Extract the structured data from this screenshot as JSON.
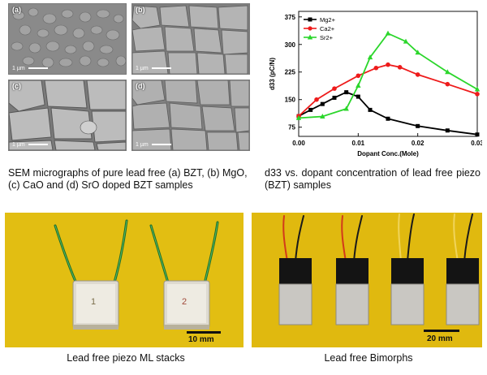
{
  "sem_panels": [
    {
      "tag": "(a)",
      "scale_label": "1 µm"
    },
    {
      "tag": "(b)",
      "scale_label": "1 µm"
    },
    {
      "tag": "(c)",
      "scale_label": "1 µm"
    },
    {
      "tag": "(d)",
      "scale_label": "1 µm"
    }
  ],
  "captions": {
    "sem": "SEM micrographs of pure lead free (a) BZT, (b) MgO, (c) CaO and (d) SrO doped BZT samples",
    "chart": "d33 vs. dopant concentration of lead free piezo (BZT) samples",
    "ml_stacks": "Lead free piezo ML stacks",
    "bimorphs": "Lead free Bimorphs"
  },
  "photo_labels": {
    "ml_scale": "10 mm",
    "ml_marks": [
      "1",
      "2"
    ],
    "bim_scale": "20 mm"
  },
  "chart_data": {
    "type": "line",
    "xlabel": "Dopant Conc.(Mole)",
    "ylabel": "d33 (pC/N)",
    "xlim": [
      0.0,
      0.03
    ],
    "ylim": [
      50,
      390
    ],
    "xticks": [
      0.0,
      0.01,
      0.02,
      0.03
    ],
    "xtick_labels": [
      "0.00",
      "0.01",
      "0.02",
      "0.03"
    ],
    "yticks": [
      75,
      150,
      225,
      300,
      375
    ],
    "legend_position": "top-left",
    "series": [
      {
        "name": "Mg2+",
        "color": "#000000",
        "marker": "square",
        "points": [
          [
            0.0,
            105
          ],
          [
            0.002,
            122
          ],
          [
            0.004,
            138
          ],
          [
            0.006,
            155
          ],
          [
            0.008,
            170
          ],
          [
            0.01,
            158
          ],
          [
            0.012,
            122
          ],
          [
            0.015,
            98
          ],
          [
            0.02,
            78
          ],
          [
            0.025,
            66
          ],
          [
            0.03,
            55
          ]
        ]
      },
      {
        "name": "Ca2+",
        "color": "#ee1b1b",
        "marker": "circle",
        "points": [
          [
            0.0,
            105
          ],
          [
            0.003,
            150
          ],
          [
            0.006,
            180
          ],
          [
            0.01,
            215
          ],
          [
            0.013,
            236
          ],
          [
            0.015,
            245
          ],
          [
            0.017,
            238
          ],
          [
            0.02,
            218
          ],
          [
            0.025,
            192
          ],
          [
            0.03,
            165
          ]
        ]
      },
      {
        "name": "Sr2+",
        "color": "#2bd62b",
        "marker": "triangle",
        "points": [
          [
            0.0,
            100
          ],
          [
            0.004,
            104
          ],
          [
            0.008,
            125
          ],
          [
            0.01,
            188
          ],
          [
            0.012,
            265
          ],
          [
            0.015,
            330
          ],
          [
            0.018,
            308
          ],
          [
            0.02,
            278
          ],
          [
            0.025,
            225
          ],
          [
            0.03,
            178
          ]
        ]
      }
    ]
  }
}
